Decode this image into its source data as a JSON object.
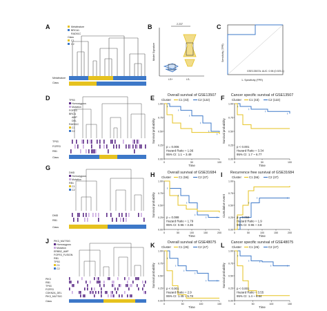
{
  "colors": {
    "c1": "#e6c21f",
    "c2": "#3d78c8",
    "purple": "#5b2a86",
    "tree": "#555555"
  },
  "panels": {
    "A": {
      "label": "A",
      "legend": [
        "Metafeature",
        "BRCA1",
        "RAD51C",
        "Class",
        "C1",
        "C2"
      ],
      "rows": [
        "Metafeature",
        "Class"
      ]
    },
    "B": {
      "label": "B",
      "ylabel": "Model Signature",
      "pvalue": "2.237",
      "xticks": [
        "LS+",
        "LS-"
      ]
    },
    "C": {
      "label": "C",
      "ylabel": "Sensitivity (TPR)",
      "xlabel": "1- Specificity (FPR)",
      "legend": "GSE13507A: AUC: 0.98 (0.929-1)"
    },
    "D": {
      "label": "D",
      "legend": [
        "TP53",
        "Homozygous",
        "Mutation",
        "FGFR3",
        "BRCA",
        "AMP",
        "DEL",
        "RAD51C",
        "C1",
        "C2"
      ],
      "rows": [
        "TP53",
        "FGFR3",
        "RB1",
        "Class"
      ]
    },
    "E": {
      "label": "E",
      "title": "Overall survival of GSE13507",
      "cluster": "Cluster",
      "c1": "C1 (43)",
      "c2": "C2 (122)",
      "ylabel": "Survival probability",
      "xlabel": "Time",
      "p": "p = 0.006",
      "hr": "Hazard Ratio = 1.96",
      "ci": "95% CI: 1.1 ~ 3.49",
      "xticks": [
        "0",
        "50",
        "100"
      ],
      "yticks": [
        "0.00",
        "0.25",
        "0.50",
        "0.75",
        "1.00"
      ]
    },
    "F": {
      "label": "F",
      "title": "Cancer specific survival of GSE13507",
      "cluster": "Cluster",
      "c1": "C1 (43)",
      "c2": "C2 (122)",
      "ylabel": "Survival probability",
      "xlabel": "Time",
      "p": "p < 0.001",
      "hr": "Hazard Ratio = 3.34",
      "ci": "95% CI: 1.7 ~ 6.77",
      "xticks": [
        "0",
        "50",
        "100"
      ],
      "yticks": [
        "0.00",
        "0.25",
        "0.50",
        "0.75",
        "1.00"
      ]
    },
    "G": {
      "label": "G",
      "legend": [
        "DMD",
        "Homozygous",
        "Mutation",
        "RB1",
        "C1",
        "C2"
      ],
      "rows": [
        "DMD",
        "RB1",
        "Class"
      ]
    },
    "H": {
      "label": "H",
      "title": "Overall survival of GSE31684",
      "cluster": "Cluster",
      "c1": "C1 (56)",
      "c2": "C2 (37)",
      "ylabel": "Survival probability",
      "xlabel": "Time",
      "p": "p = 0.088",
      "hr": "Hazard Ratio = 1.79",
      "ci": "95% CI: 0.96 ~ 3.36",
      "xticks": [
        "0",
        "50",
        "100",
        "150",
        "200"
      ],
      "yticks": [
        "0.00",
        "0.25",
        "0.50",
        "0.75",
        "1.00"
      ]
    },
    "I": {
      "label": "I",
      "title": "Recurrence free survival of GSE31684",
      "cluster": "Cluster",
      "c1": "C1 (56)",
      "c2": "C2 (37)",
      "ylabel": "Cumulative event",
      "xlabel": "Time",
      "p": "p = 0.058",
      "hr": "Hazard Ratio = 1.9",
      "ci": "95% CI: 0.96 ~ 3.8",
      "xticks": [
        "0",
        "50",
        "100",
        "150",
        "200"
      ],
      "yticks": [
        "0.00",
        "0.25",
        "0.50",
        "0.75",
        "1.00"
      ]
    },
    "J": {
      "label": "J",
      "legend": [
        "PIK3_MUTSIG",
        "Homozygous",
        "Mutation",
        "ERBB2_AMP",
        "FGFR3_FUSION",
        "RB1",
        "TP53",
        "C1",
        "C2"
      ],
      "rows": [
        "PIK3",
        "RB1",
        "TP53",
        "FGFR3",
        "CDKN2A_DEL",
        "PIK3_MUTSIG",
        "Class"
      ]
    },
    "K": {
      "label": "K",
      "title": "Overall survival of GSE48075",
      "cluster": "Cluster",
      "c1": "C1 (26)",
      "c2": "C2 (47)",
      "ylabel": "Survival probability",
      "xlabel": "Time",
      "p": "p < 0.001",
      "hr": "Hazard Ratio = 2.9",
      "ci": "95% CI: 1.45 ~ 5.78",
      "xticks": [
        "0",
        "50",
        "100",
        "150"
      ],
      "yticks": [
        "0.00",
        "0.25",
        "0.50",
        "0.75",
        "1.00"
      ]
    },
    "L": {
      "label": "L",
      "title": "Cancer specific survival of GSE48075",
      "cluster": "Cluster",
      "c1": "C1 (26)",
      "c2": "C2 (47)",
      "ylabel": "Survival probability",
      "xlabel": "Time",
      "p": "p < 0.001",
      "hr": "Hazard Ratio = 3.55",
      "ci": "95% CI: 1.4 ~ 8.64",
      "xticks": [
        "0",
        "50",
        "100",
        "150"
      ],
      "yticks": [
        "0.00",
        "0.25",
        "0.50",
        "0.75",
        "1.00"
      ]
    }
  }
}
